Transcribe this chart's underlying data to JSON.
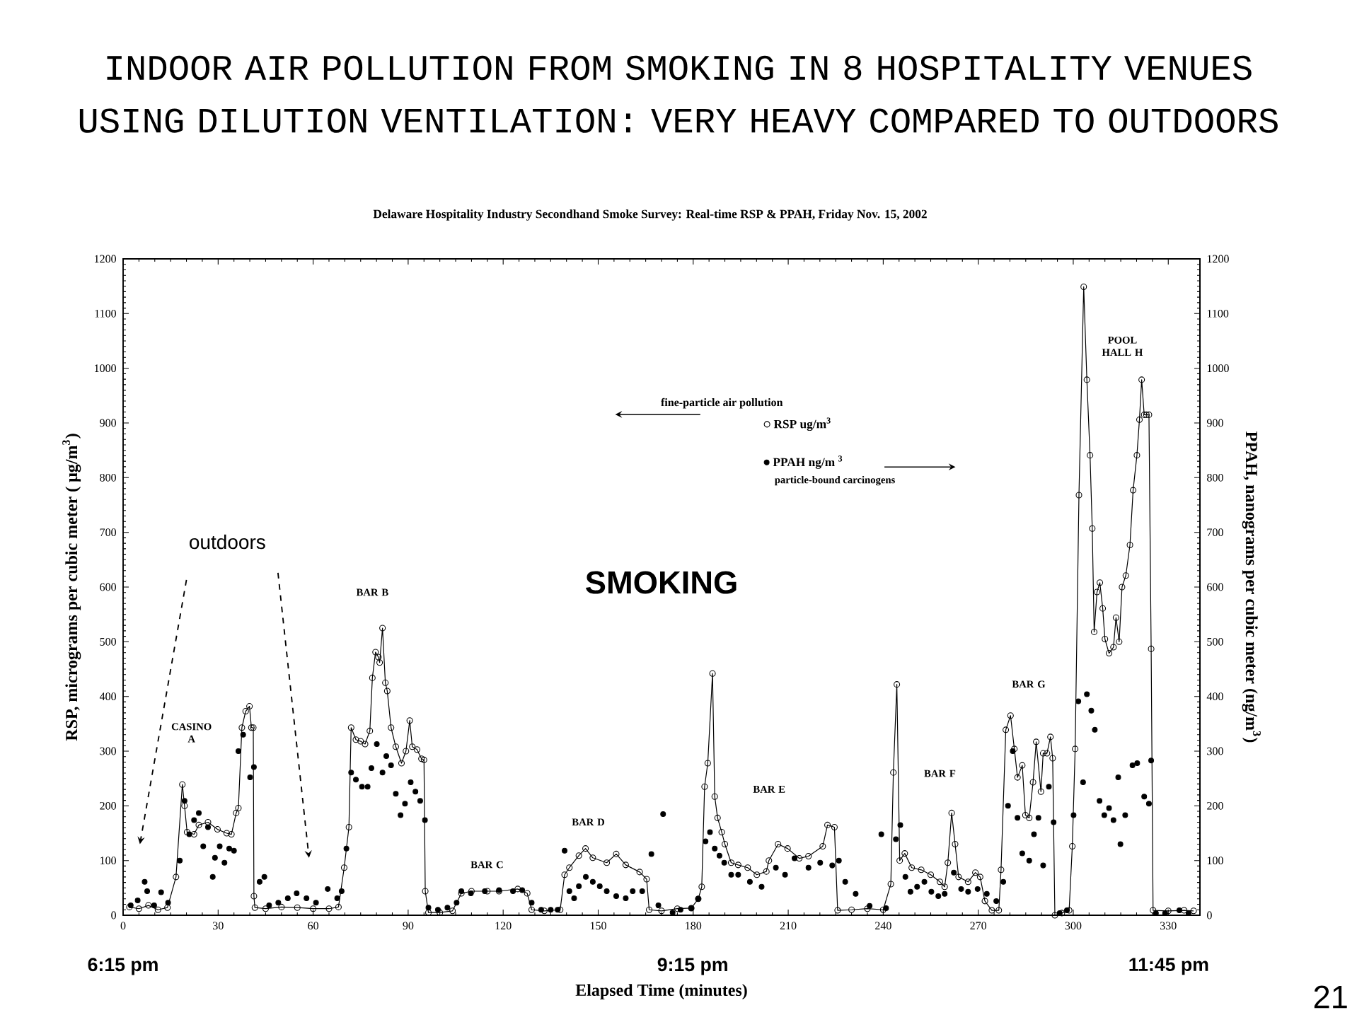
{
  "chart_data": {
    "type": "line",
    "title": "INDOOR AIR POLLUTION FROM SMOKING IN 8 HOSPITALITY VENUES USING DILUTION VENTILATION: VERY HEAVY COMPARED TO OUTDOORS",
    "subtitle": "Delaware Hospitality Industry Secondhand Smoke Survey:  Real-time RSP & PPAH, Friday Nov. 15, 2002",
    "xlabel": "Elapsed Time (minutes)",
    "ylabel": "RSP, micrograms per cubic meter ( μg/m$^{3}$)",
    "y2label": "PPAH, nanograms per cubic meter (ng/m$^{3}$)",
    "legend_title": "fine-particle air pollution",
    "legend": "top",
    "marker": "circle",
    "xlim": [
      0,
      340
    ],
    "xticks": [
      0,
      30,
      60,
      90,
      120,
      150,
      180,
      210,
      240,
      270,
      300,
      330
    ],
    "ylim": [
      0,
      1200
    ],
    "yticks": [
      0,
      100,
      200,
      300,
      400,
      500,
      600,
      700,
      800,
      900,
      1000,
      1100,
      1200
    ],
    "y2lim": [
      0,
      1200
    ],
    "y2ticks": [
      0,
      100,
      200,
      300,
      400,
      500,
      600,
      700,
      800,
      900,
      1000,
      1100,
      1200
    ],
    "series": [
      {
        "name": "RSP  ug/m$^{3}$",
        "color": "#000000",
        "x": [
          2,
          5,
          8,
          11,
          14,
          16.7,
          18.7,
          19.4,
          20.2,
          22.4,
          23.9,
          26.8,
          29.8,
          32.7,
          34.2,
          35.7,
          36.4,
          37.5,
          38.7,
          39.9,
          40.5,
          41.1,
          41.3,
          41.6,
          45,
          50,
          55,
          60,
          65,
          68,
          69.8,
          71.3,
          72,
          73.5,
          75,
          76.4,
          77.9,
          78.7,
          79.7,
          80.6,
          81,
          81.9,
          82.8,
          83.4,
          84.6,
          86.1,
          87.9,
          89.3,
          90.5,
          91.3,
          92.8,
          94.2,
          95,
          95.4,
          96.4,
          100,
          104,
          106.8,
          110,
          115,
          118.7,
          124.6,
          127.6,
          129,
          133,
          138,
          139.4,
          140.9,
          143.9,
          146,
          148.3,
          152.7,
          155.7,
          158.7,
          163.1,
          165.3,
          166.1,
          170,
          175,
          179.4,
          181.6,
          182.7,
          183.6,
          184.6,
          186.1,
          186.8,
          187.7,
          189,
          190,
          192,
          194.2,
          197.2,
          200.1,
          203.1,
          203.9,
          206.8,
          209.8,
          213.5,
          216.4,
          220.9,
          222.4,
          224.6,
          225.6,
          230,
          235,
          240,
          242.4,
          243.2,
          244.3,
          245.2,
          246.8,
          249,
          252,
          255,
          257.9,
          259.4,
          260.4,
          261.6,
          262.7,
          263.8,
          266.8,
          269.1,
          270.6,
          272.1,
          274.3,
          276.5,
          277.2,
          278.7,
          280.2,
          281.4,
          282.4,
          283.9,
          284.9,
          286.1,
          287.3,
          288.3,
          289.8,
          290.5,
          291.7,
          292.8,
          293.5,
          294.2,
          296.4,
          298.7,
          299.7,
          300.6,
          301.8,
          303.3,
          304.3,
          305.3,
          306,
          306.6,
          307.5,
          308.4,
          309.3,
          310,
          311.3,
          312.7,
          313.5,
          314.5,
          315.4,
          316.6,
          317.9,
          318.9,
          320.1,
          320.9,
          321.6,
          322.4,
          323.1,
          323.9,
          324.6,
          325.2,
          330,
          335,
          338
        ],
        "values": [
          15,
          12,
          18,
          10,
          14,
          70,
          239,
          200,
          152,
          148,
          165,
          170,
          157,
          150,
          148,
          187,
          196,
          343,
          373,
          382,
          343,
          343,
          35,
          14,
          12,
          15,
          14,
          12,
          12,
          15,
          87,
          161,
          343,
          321,
          318,
          313,
          337,
          434,
          481,
          472,
          462,
          525,
          425,
          410,
          343,
          308,
          278,
          300,
          356,
          308,
          303,
          286,
          284,
          44,
          5,
          5,
          8,
          40,
          44,
          44,
          44,
          48,
          40,
          10,
          8,
          10,
          74,
          87,
          109,
          122,
          105,
          96,
          112,
          92,
          79,
          66,
          10,
          8,
          12,
          13,
          30,
          52,
          235,
          278,
          442,
          217,
          178,
          152,
          130,
          96,
          92,
          87,
          74,
          80,
          100,
          130,
          122,
          104,
          108,
          126,
          165,
          161,
          9,
          10,
          12,
          10,
          57,
          261,
          422,
          100,
          113,
          87,
          83,
          74,
          61,
          52,
          96,
          187,
          130,
          70,
          61,
          78,
          70,
          26,
          9,
          9,
          83,
          339,
          365,
          304,
          252,
          274,
          183,
          178,
          243,
          317,
          226,
          296,
          296,
          326,
          287,
          0,
          4,
          9,
          126,
          304,
          768,
          1149,
          979,
          841,
          707,
          518,
          591,
          608,
          561,
          505,
          479,
          490,
          544,
          500,
          600,
          621,
          677,
          777,
          841,
          906,
          979,
          915,
          915,
          915,
          487,
          9,
          8,
          9,
          8
        ]
      },
      {
        "name": "PPAH ng/m $^{3}$",
        "type": "scatter",
        "axis": "y2",
        "color": "#000000",
        "x": [
          2.4,
          4.6,
          6.8,
          7.6,
          9.8,
          12,
          14.2,
          17.9,
          19.4,
          20.9,
          22.4,
          23.9,
          25.3,
          26.8,
          28.3,
          29,
          30.5,
          32,
          33.5,
          35,
          36.4,
          37.9,
          40.1,
          41.3,
          43.1,
          44.6,
          46.1,
          49,
          52,
          54.8,
          57.9,
          60.9,
          64.6,
          67.6,
          69,
          70.5,
          72,
          73.5,
          75.4,
          77.2,
          78.4,
          80.1,
          81.9,
          83.1,
          84.6,
          86.1,
          87.6,
          89,
          90.8,
          92.3,
          93.8,
          95.3,
          96.4,
          99.4,
          102.4,
          105.3,
          106.8,
          109.8,
          114.2,
          118.7,
          123.1,
          126,
          129,
          132,
          135,
          137.2,
          139.4,
          140.9,
          142.4,
          143.9,
          146.1,
          148.3,
          150.5,
          152.7,
          155.7,
          158.7,
          160.9,
          163.9,
          166.8,
          169,
          170.5,
          173.5,
          176,
          179.4,
          181.6,
          183.9,
          185.3,
          186.8,
          188.3,
          189.8,
          192,
          194.2,
          197.9,
          201.6,
          206.1,
          209,
          212,
          216.4,
          220.1,
          223.9,
          226,
          228,
          231.3,
          235.7,
          239.4,
          240.9,
          244,
          245.4,
          247,
          248.6,
          250.7,
          253,
          255.2,
          257.4,
          259.4,
          262.3,
          264.6,
          266.8,
          269.8,
          272.7,
          275.7,
          277.9,
          279.4,
          280.9,
          282.4,
          283.9,
          286.1,
          287.6,
          289,
          290.5,
          292.3,
          293.8,
          295.7,
          298,
          300.1,
          301.6,
          303.1,
          304.3,
          305.7,
          306.8,
          308.3,
          309.8,
          311.3,
          312.7,
          314.2,
          314.9,
          316.4,
          318.7,
          320.2,
          322.4,
          323.9,
          324.6,
          326.1,
          329,
          333.5,
          336.4
        ],
        "values": [
          18,
          27,
          61,
          44,
          18,
          42,
          23,
          100,
          209,
          148,
          174,
          187,
          126,
          161,
          70,
          105,
          126,
          96,
          122,
          118,
          300,
          330,
          252,
          271,
          61,
          70,
          18,
          23,
          31,
          40,
          31,
          23,
          48,
          31,
          44,
          122,
          261,
          248,
          235,
          235,
          269,
          313,
          261,
          291,
          274,
          222,
          183,
          204,
          243,
          226,
          209,
          174,
          14,
          10,
          14,
          23,
          44,
          40,
          44,
          46,
          44,
          46,
          23,
          10,
          10,
          10,
          118,
          44,
          31,
          53,
          70,
          61,
          53,
          44,
          35,
          31,
          44,
          44,
          112,
          18,
          185,
          5,
          10,
          13,
          30,
          135,
          152,
          122,
          109,
          96,
          74,
          74,
          61,
          52,
          87,
          74,
          104,
          87,
          96,
          91,
          100,
          61,
          39,
          17,
          148,
          13,
          139,
          165,
          70,
          43,
          52,
          61,
          43,
          35,
          39,
          78,
          48,
          43,
          48,
          39,
          26,
          61,
          200,
          300,
          178,
          113,
          100,
          148,
          178,
          91,
          235,
          170,
          4,
          9,
          183,
          391,
          243,
          404,
          374,
          339,
          209,
          183,
          196,
          174,
          252,
          130,
          183,
          274,
          278,
          217,
          204,
          283,
          4,
          4,
          9,
          4
        ]
      }
    ],
    "annotations": [
      "outdoors",
      "SMOKING",
      "CASINO A",
      "BAR B",
      "BAR C",
      "BAR D",
      "BAR E",
      "BAR F",
      "BAR G",
      "POOL HALL H",
      "6:15 pm",
      "9:15 pm",
      "11:45 pm",
      "particle-bound carcinogens",
      "21"
    ]
  }
}
